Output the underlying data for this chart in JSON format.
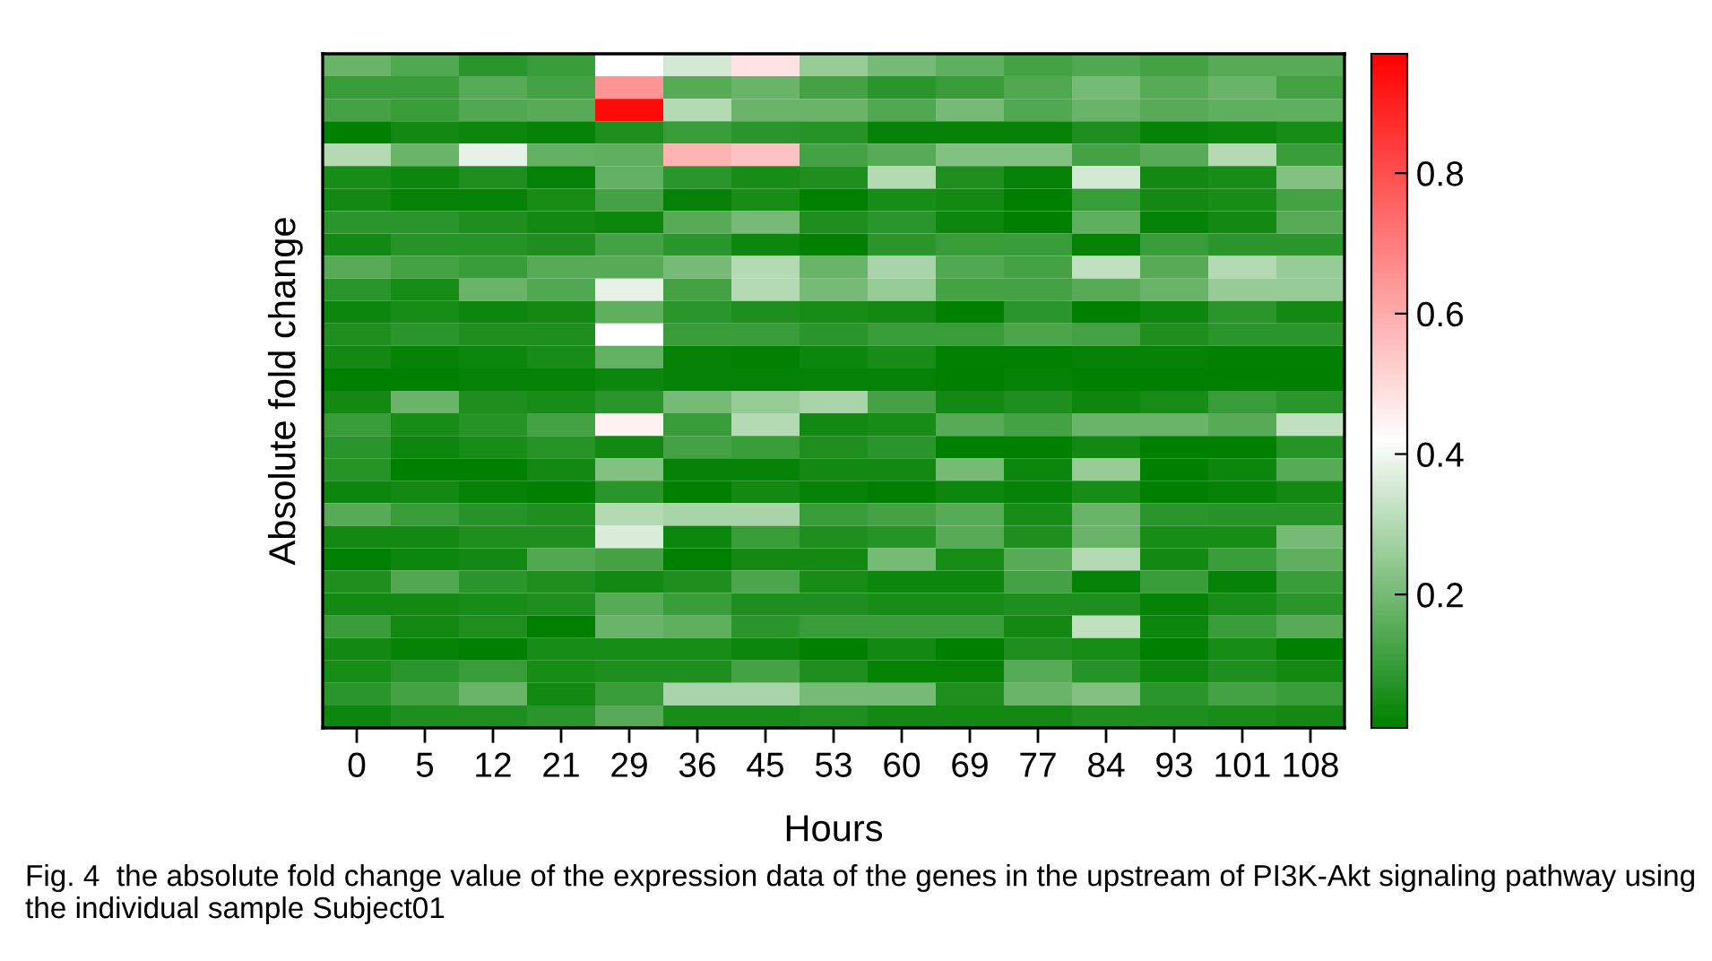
{
  "chart_data": {
    "type": "heatmap",
    "xlabel": "Hours",
    "ylabel": "Absolute fold change",
    "categories": [
      "0",
      "5",
      "12",
      "21",
      "29",
      "36",
      "45",
      "53",
      "60",
      "69",
      "77",
      "84",
      "93",
      "101",
      "108"
    ],
    "y_categories": [
      null,
      null,
      null,
      null,
      null,
      null,
      null,
      null,
      null,
      null,
      null,
      null,
      null,
      null,
      null,
      null,
      null,
      null,
      null,
      null,
      null,
      null,
      null,
      null,
      null,
      null,
      null,
      null,
      null,
      null
    ],
    "cells": [
      [
        0.18,
        0.14,
        0.08,
        0.1,
        0.42,
        0.35,
        0.48,
        0.25,
        0.2,
        0.16,
        0.12,
        0.14,
        0.12,
        0.15,
        0.15
      ],
      [
        0.1,
        0.1,
        0.15,
        0.12,
        0.65,
        0.15,
        0.18,
        0.12,
        0.08,
        0.1,
        0.14,
        0.2,
        0.15,
        0.18,
        0.12
      ],
      [
        0.12,
        0.1,
        0.14,
        0.15,
        0.95,
        0.3,
        0.18,
        0.18,
        0.14,
        0.2,
        0.14,
        0.18,
        0.15,
        0.16,
        0.16
      ],
      [
        0.01,
        0.04,
        0.03,
        0.02,
        0.06,
        0.1,
        0.08,
        0.07,
        0.02,
        0.02,
        0.02,
        0.06,
        0.02,
        0.03,
        0.05
      ],
      [
        0.3,
        0.18,
        0.38,
        0.17,
        0.16,
        0.58,
        0.55,
        0.12,
        0.15,
        0.22,
        0.22,
        0.12,
        0.15,
        0.3,
        0.1
      ],
      [
        0.05,
        0.03,
        0.06,
        0.02,
        0.17,
        0.08,
        0.05,
        0.06,
        0.3,
        0.06,
        0.02,
        0.35,
        0.04,
        0.05,
        0.22
      ],
      [
        0.04,
        0.02,
        0.02,
        0.05,
        0.12,
        0.02,
        0.05,
        0.01,
        0.05,
        0.04,
        0.01,
        0.1,
        0.04,
        0.05,
        0.12
      ],
      [
        0.08,
        0.08,
        0.06,
        0.04,
        0.03,
        0.15,
        0.2,
        0.06,
        0.08,
        0.03,
        0.01,
        0.16,
        0.02,
        0.04,
        0.15
      ],
      [
        0.04,
        0.07,
        0.07,
        0.06,
        0.12,
        0.08,
        0.03,
        0.01,
        0.08,
        0.1,
        0.1,
        0.02,
        0.1,
        0.08,
        0.08
      ],
      [
        0.15,
        0.12,
        0.1,
        0.15,
        0.15,
        0.2,
        0.3,
        0.18,
        0.28,
        0.14,
        0.12,
        0.32,
        0.15,
        0.3,
        0.25
      ],
      [
        0.08,
        0.05,
        0.18,
        0.14,
        0.38,
        0.12,
        0.3,
        0.2,
        0.25,
        0.12,
        0.12,
        0.15,
        0.18,
        0.25,
        0.25
      ],
      [
        0.03,
        0.05,
        0.03,
        0.04,
        0.16,
        0.08,
        0.06,
        0.05,
        0.04,
        0.01,
        0.08,
        0.01,
        0.03,
        0.08,
        0.04
      ],
      [
        0.06,
        0.08,
        0.06,
        0.06,
        0.42,
        0.1,
        0.1,
        0.08,
        0.1,
        0.1,
        0.13,
        0.12,
        0.06,
        0.08,
        0.08
      ],
      [
        0.04,
        0.02,
        0.03,
        0.05,
        0.17,
        0.02,
        0.01,
        0.03,
        0.05,
        0.01,
        0.01,
        0.02,
        0.02,
        0.01,
        0.01
      ],
      [
        0.01,
        0.01,
        0.02,
        0.02,
        0.03,
        0.02,
        0.02,
        0.02,
        0.02,
        0.01,
        0.02,
        0.01,
        0.01,
        0.01,
        0.01
      ],
      [
        0.04,
        0.18,
        0.06,
        0.05,
        0.08,
        0.2,
        0.25,
        0.28,
        0.12,
        0.04,
        0.06,
        0.03,
        0.05,
        0.1,
        0.08
      ],
      [
        0.1,
        0.05,
        0.07,
        0.12,
        0.45,
        0.1,
        0.3,
        0.04,
        0.05,
        0.15,
        0.12,
        0.18,
        0.18,
        0.15,
        0.32
      ],
      [
        0.08,
        0.03,
        0.05,
        0.07,
        0.04,
        0.12,
        0.1,
        0.06,
        0.08,
        0.01,
        0.01,
        0.04,
        0.01,
        0.01,
        0.07
      ],
      [
        0.07,
        0.01,
        0.01,
        0.04,
        0.22,
        0.02,
        0.02,
        0.04,
        0.04,
        0.2,
        0.03,
        0.25,
        0.01,
        0.03,
        0.15
      ],
      [
        0.03,
        0.04,
        0.02,
        0.01,
        0.08,
        0.01,
        0.04,
        0.02,
        0.01,
        0.03,
        0.02,
        0.05,
        0.01,
        0.02,
        0.04
      ],
      [
        0.15,
        0.1,
        0.07,
        0.06,
        0.3,
        0.28,
        0.28,
        0.1,
        0.12,
        0.15,
        0.05,
        0.18,
        0.08,
        0.07,
        0.07
      ],
      [
        0.04,
        0.04,
        0.06,
        0.06,
        0.36,
        0.03,
        0.1,
        0.06,
        0.07,
        0.15,
        0.06,
        0.18,
        0.05,
        0.05,
        0.2
      ],
      [
        0.01,
        0.03,
        0.04,
        0.14,
        0.12,
        0.01,
        0.04,
        0.04,
        0.2,
        0.05,
        0.15,
        0.3,
        0.04,
        0.1,
        0.16
      ],
      [
        0.06,
        0.14,
        0.08,
        0.06,
        0.04,
        0.06,
        0.13,
        0.05,
        0.03,
        0.03,
        0.12,
        0.02,
        0.1,
        0.02,
        0.1
      ],
      [
        0.04,
        0.04,
        0.05,
        0.06,
        0.15,
        0.1,
        0.06,
        0.06,
        0.05,
        0.05,
        0.06,
        0.06,
        0.02,
        0.05,
        0.08
      ],
      [
        0.1,
        0.04,
        0.06,
        0.01,
        0.18,
        0.16,
        0.08,
        0.1,
        0.1,
        0.1,
        0.04,
        0.32,
        0.03,
        0.1,
        0.15
      ],
      [
        0.04,
        0.02,
        0.01,
        0.05,
        0.05,
        0.05,
        0.03,
        0.01,
        0.04,
        0.01,
        0.06,
        0.05,
        0.01,
        0.05,
        0.01
      ],
      [
        0.05,
        0.08,
        0.1,
        0.05,
        0.06,
        0.06,
        0.12,
        0.06,
        0.02,
        0.02,
        0.15,
        0.07,
        0.03,
        0.06,
        0.04
      ],
      [
        0.08,
        0.12,
        0.18,
        0.04,
        0.1,
        0.28,
        0.28,
        0.2,
        0.2,
        0.06,
        0.18,
        0.22,
        0.08,
        0.12,
        0.1
      ],
      [
        0.03,
        0.06,
        0.06,
        0.08,
        0.15,
        0.05,
        0.05,
        0.06,
        0.04,
        0.04,
        0.04,
        0.06,
        0.06,
        0.05,
        0.04
      ]
    ],
    "clim": [
      0.01,
      0.97
    ],
    "cticks": [
      0.2,
      0.4,
      0.6,
      0.8
    ],
    "annotations": [
      "Fig. 4  the absolute fold change value of the expression data of the genes in the upstream of PI3K-Akt signaling pathway using the individual sample Subject01"
    ]
  }
}
